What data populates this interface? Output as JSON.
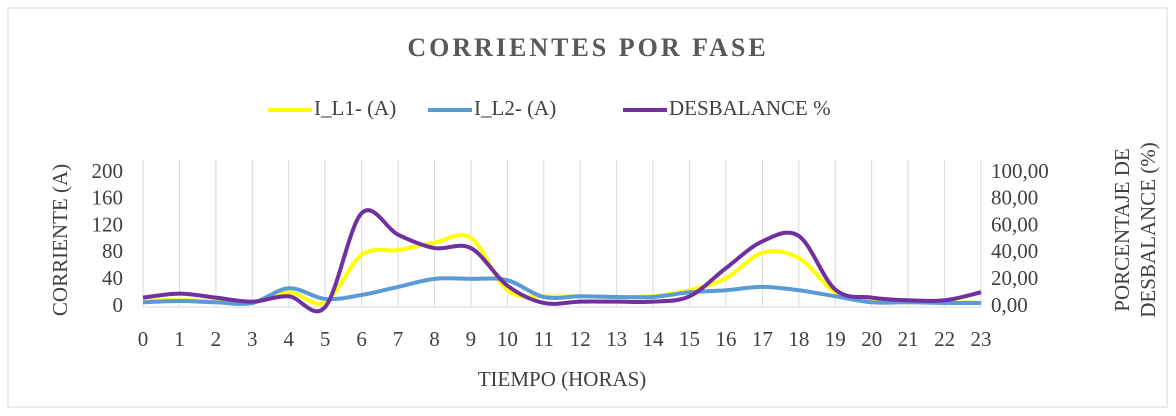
{
  "chart_data": {
    "type": "line",
    "title": "CORRIENTES POR FASE",
    "xlabel": "TIEMPO (HORAS)",
    "ylabel": "CORRIENTE (A)",
    "y2label": [
      "PORCENTAJE DE",
      "DESBALANCE (%)"
    ],
    "categories": [
      "0",
      "1",
      "2",
      "3",
      "4",
      "5",
      "6",
      "7",
      "8",
      "9",
      "10",
      "11",
      "12",
      "13",
      "14",
      "15",
      "16",
      "17",
      "18",
      "19",
      "20",
      "21",
      "22",
      "23"
    ],
    "series": [
      {
        "name": "I_L1- (A)",
        "color": "#ffff00",
        "values": [
          10,
          10,
          9,
          6,
          22,
          7,
          78,
          85,
          96,
          103,
          25,
          16,
          16,
          15,
          16,
          25,
          43,
          81,
          73,
          22,
          10,
          7,
          7,
          6
        ]
      },
      {
        "name": "I_L2- (A)",
        "color": "#5b9bd5",
        "values": [
          7,
          9,
          7,
          6,
          28,
          12,
          18,
          30,
          42,
          42,
          40,
          15,
          16,
          15,
          15,
          22,
          25,
          30,
          25,
          16,
          7,
          7,
          6,
          6
        ]
      },
      {
        "name": "DESBALANCE %",
        "color": "#7030a0",
        "axis": "y2",
        "values": [
          7,
          10,
          7,
          4,
          8,
          0,
          70,
          54,
          44,
          44,
          16,
          3,
          4,
          4,
          4,
          8,
          29,
          49,
          53,
          13,
          7,
          5,
          5,
          11
        ]
      }
    ],
    "ylim": [
      0,
      200
    ],
    "yticks": [
      0,
      40,
      80,
      120,
      160,
      200
    ],
    "y2lim": [
      0,
      100
    ],
    "y2ticks": [
      {
        "value": 0,
        "label": "0,00"
      },
      {
        "value": 20,
        "label": "20,00"
      },
      {
        "value": 40,
        "label": "40,00"
      },
      {
        "value": 60,
        "label": "60,00"
      },
      {
        "value": 80,
        "label": "80,00"
      },
      {
        "value": 100,
        "label": "100,00"
      }
    ],
    "grid": "x",
    "legend": "top",
    "smooth": true
  }
}
